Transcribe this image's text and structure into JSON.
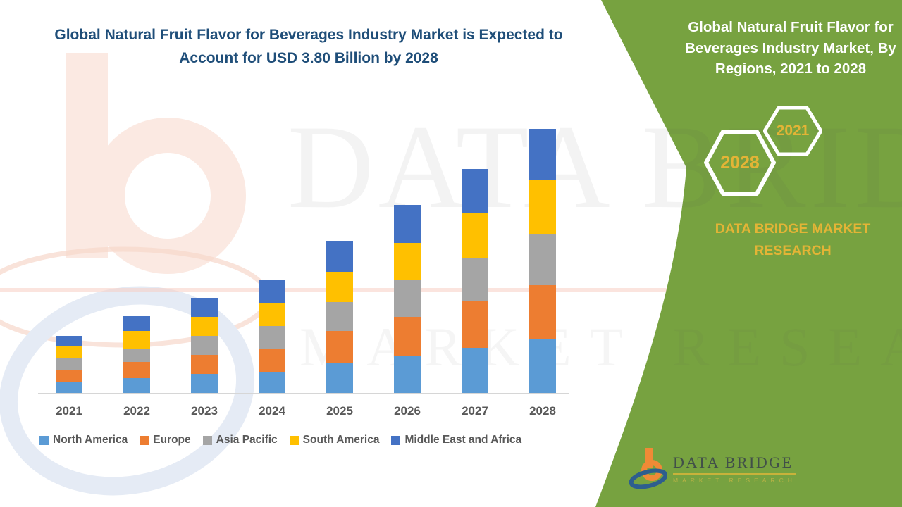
{
  "title": {
    "text": "Global Natural Fruit Flavor for Beverages Industry Market is Expected to Account for USD 3.80 Billion by 2028",
    "color": "#1F4E79"
  },
  "side_panel": {
    "bg_color": "#77A240",
    "heading": "Global Natural Fruit Flavor for Beverages Industry Market, By Regions, 2021 to 2028",
    "hexagon_badges": [
      {
        "label": "2021"
      },
      {
        "label": "2028"
      }
    ],
    "brand_text": "DATA BRIDGE MARKET RESEARCH",
    "gold_color": "#E3B436"
  },
  "chart_data": {
    "type": "bar",
    "stacked": true,
    "unit": "USD Billion",
    "categories": [
      "2021",
      "2022",
      "2023",
      "2024",
      "2025",
      "2026",
      "2027",
      "2028"
    ],
    "series": [
      {
        "name": "North America",
        "color": "#5B9BD5",
        "values": [
          0.16,
          0.21,
          0.27,
          0.3,
          0.42,
          0.53,
          0.65,
          0.77
        ]
      },
      {
        "name": "Europe",
        "color": "#ED7D31",
        "values": [
          0.16,
          0.23,
          0.27,
          0.32,
          0.46,
          0.57,
          0.67,
          0.78
        ]
      },
      {
        "name": "Asia Pacific",
        "color": "#A5A5A5",
        "values": [
          0.18,
          0.19,
          0.27,
          0.33,
          0.41,
          0.54,
          0.63,
          0.73
        ]
      },
      {
        "name": "South America",
        "color": "#FFC000",
        "values": [
          0.16,
          0.25,
          0.27,
          0.33,
          0.43,
          0.53,
          0.64,
          0.78
        ]
      },
      {
        "name": "Middle East and Africa",
        "color": "#4472C4",
        "values": [
          0.15,
          0.21,
          0.27,
          0.33,
          0.44,
          0.55,
          0.64,
          0.74
        ]
      }
    ],
    "ylim": [
      0,
      3.9
    ],
    "gridlines": false,
    "y_axis_visible": false,
    "legend_position": "bottom"
  },
  "watermark": {
    "line1": "DATA BRIDGE",
    "line2": "MARKET RESEARCH"
  },
  "footer_logo": {
    "name": "DATA BRIDGE",
    "tagline": "MARKET RESEARCH"
  }
}
